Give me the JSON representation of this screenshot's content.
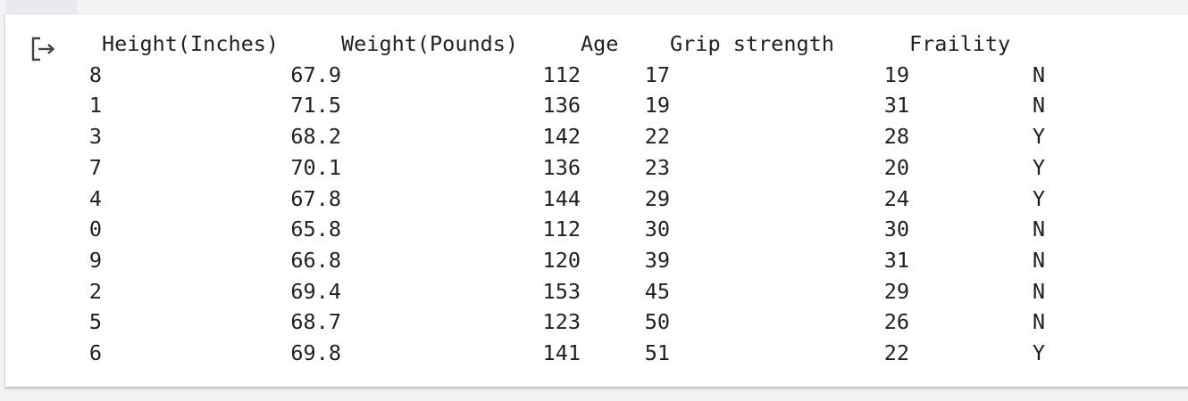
{
  "output_table": {
    "columns": [
      "",
      "Height(Inches)",
      "Weight(Pounds)",
      "Age",
      "Grip strength",
      "Fraility"
    ],
    "rows": [
      {
        "index": "8",
        "height": "67.9",
        "weight": "112",
        "age": "17",
        "grip": "19",
        "frailty": "N"
      },
      {
        "index": "1",
        "height": "71.5",
        "weight": "136",
        "age": "19",
        "grip": "31",
        "frailty": "N"
      },
      {
        "index": "3",
        "height": "68.2",
        "weight": "142",
        "age": "22",
        "grip": "28",
        "frailty": "Y"
      },
      {
        "index": "7",
        "height": "70.1",
        "weight": "136",
        "age": "23",
        "grip": "20",
        "frailty": "Y"
      },
      {
        "index": "4",
        "height": "67.8",
        "weight": "144",
        "age": "29",
        "grip": "24",
        "frailty": "Y"
      },
      {
        "index": "0",
        "height": "65.8",
        "weight": "112",
        "age": "30",
        "grip": "30",
        "frailty": "N"
      },
      {
        "index": "9",
        "height": "66.8",
        "weight": "120",
        "age": "39",
        "grip": "31",
        "frailty": "N"
      },
      {
        "index": "2",
        "height": "69.4",
        "weight": "153",
        "age": "45",
        "grip": "29",
        "frailty": "N"
      },
      {
        "index": "5",
        "height": "68.7",
        "weight": "123",
        "age": "50",
        "grip": "26",
        "frailty": "N"
      },
      {
        "index": "6",
        "height": "69.8",
        "weight": "141",
        "age": "51",
        "grip": "22",
        "frailty": "Y"
      }
    ]
  },
  "icons": {
    "output": "output-redirect-icon"
  },
  "colors": {
    "text": "#212121",
    "card_background": "#ffffff",
    "page_background": "#f1f3f4"
  }
}
